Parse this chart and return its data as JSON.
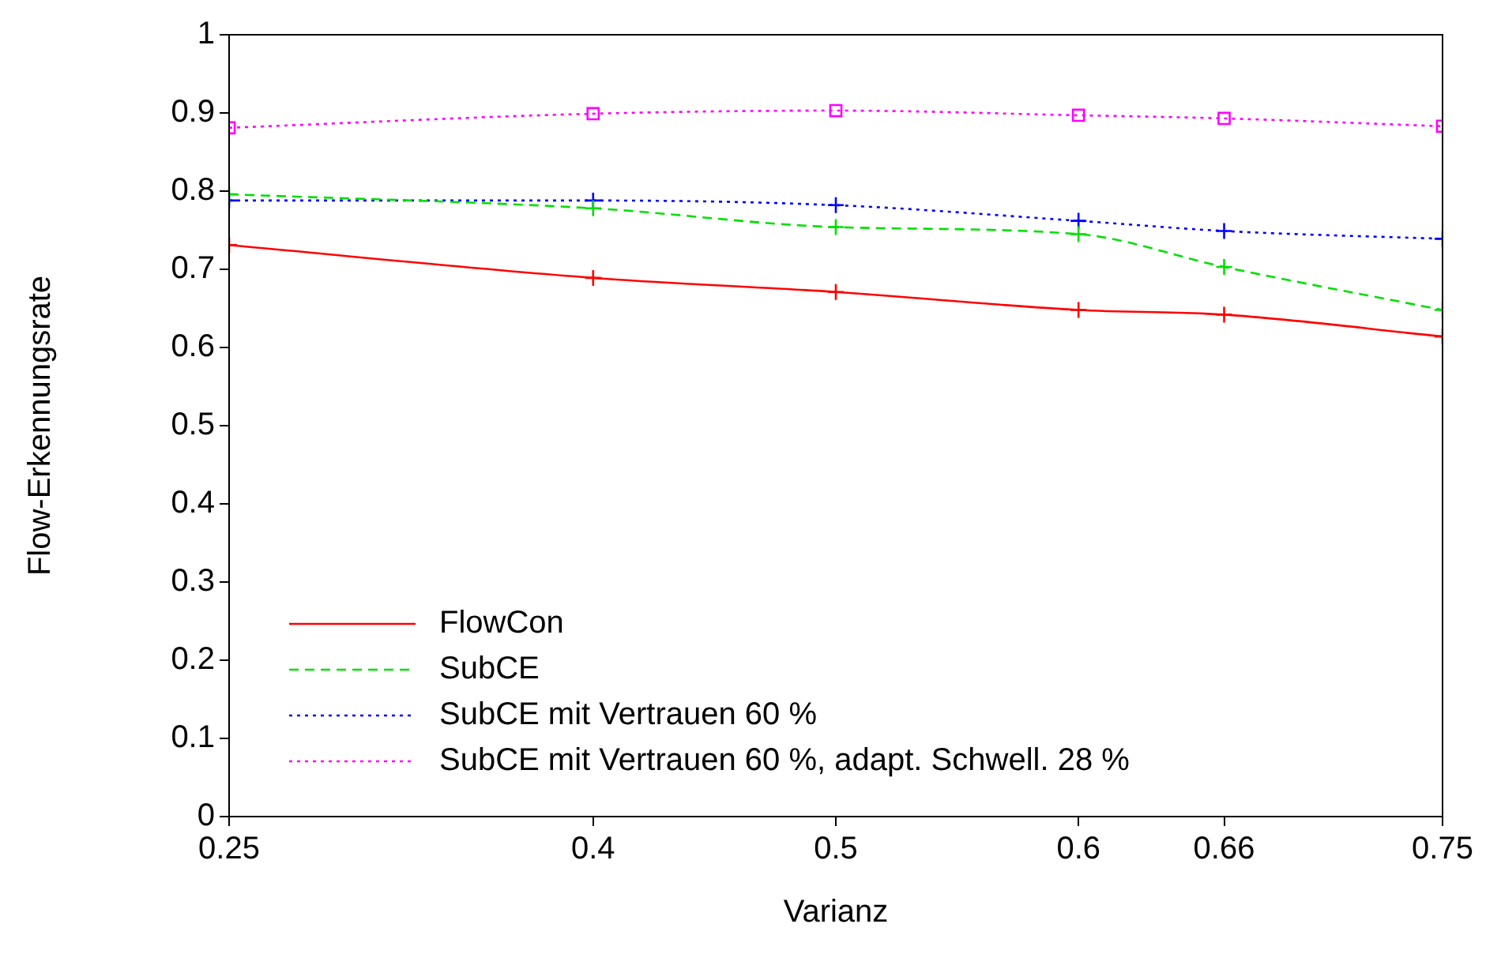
{
  "chart_data": {
    "type": "line",
    "xlabel": "Varianz",
    "ylabel": "Flow-Erkennungsrate",
    "x": [
      0.25,
      0.4,
      0.5,
      0.6,
      0.66,
      0.75
    ],
    "xlim": [
      0.25,
      0.75
    ],
    "xticks": [
      0.25,
      0.4,
      0.5,
      0.6,
      0.66,
      0.75
    ],
    "ylim": [
      0,
      1
    ],
    "yticks": [
      0,
      0.1,
      0.2,
      0.3,
      0.4,
      0.5,
      0.6,
      0.7,
      0.8,
      0.9,
      1
    ],
    "grid": false,
    "legend": "bottom left",
    "series": [
      {
        "name": "FlowCon",
        "color": "#ff0000",
        "marker": "cross",
        "line_style": "solid",
        "values": [
          0.731,
          0.689,
          0.671,
          0.648,
          0.642,
          0.614
        ]
      },
      {
        "name": "SubCE",
        "color": "#00e000",
        "marker": "cross",
        "line_style": "dashed",
        "values": [
          0.796,
          0.778,
          0.754,
          0.745,
          0.703,
          0.648
        ]
      },
      {
        "name": "SubCE mit Vertrauen 60 %",
        "color": "#0000ff",
        "marker": "cross",
        "line_style": "dotted",
        "values": [
          0.788,
          0.788,
          0.782,
          0.762,
          0.749,
          0.739
        ]
      },
      {
        "name": "SubCE mit Vertrauen 60 %, adapt. Schwell. 28 %",
        "color": "#ff00ff",
        "marker": "square",
        "line_style": "dotted",
        "values": [
          0.881,
          0.899,
          0.903,
          0.897,
          0.893,
          0.883
        ]
      }
    ]
  }
}
